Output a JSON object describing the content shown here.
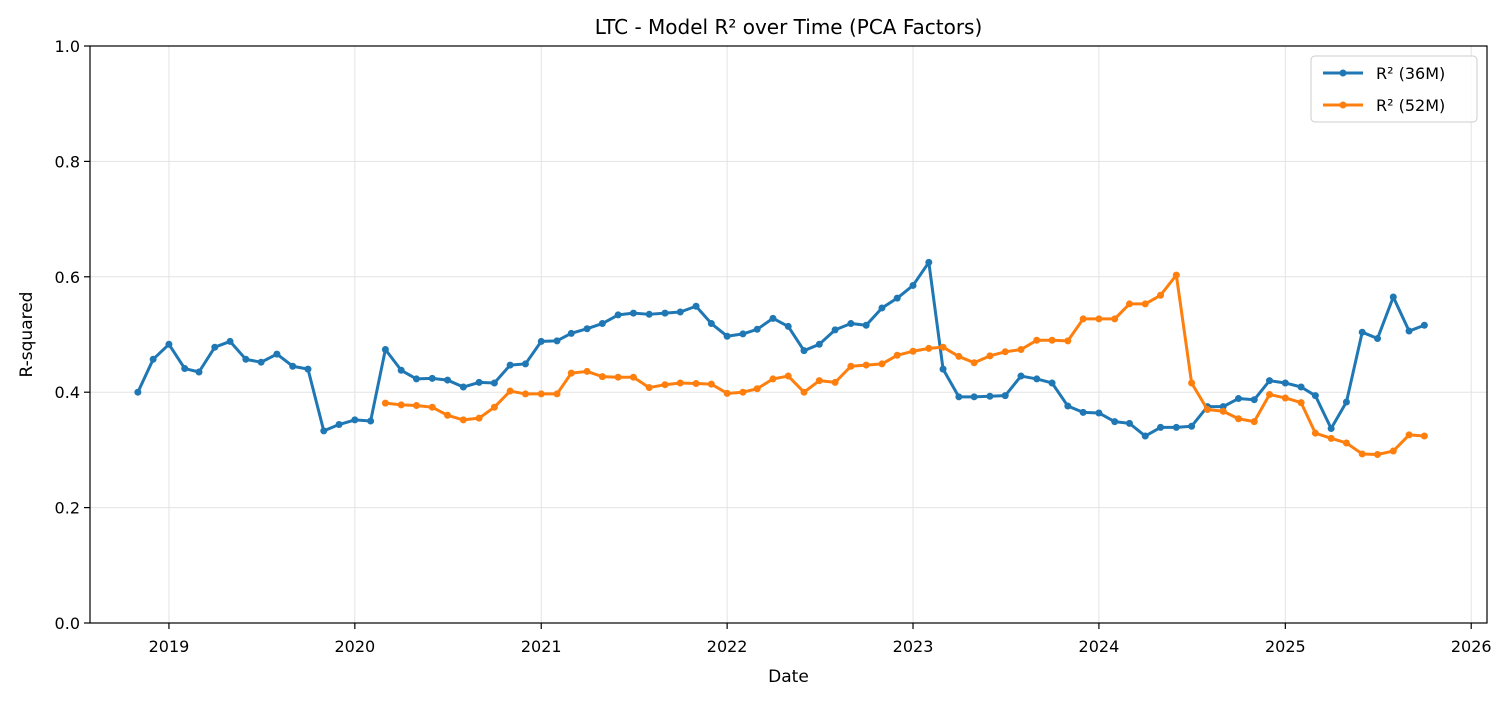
{
  "chart_data": {
    "type": "line",
    "title": "LTC - Model R² over Time (PCA Factors)",
    "xlabel": "Date",
    "ylabel": "R-squared",
    "xlim": [
      "2018-07-30",
      "2026-02-01"
    ],
    "ylim": [
      0,
      1
    ],
    "x_ticks": [
      "2019",
      "2020",
      "2021",
      "2022",
      "2023",
      "2024",
      "2025",
      "2026"
    ],
    "y_ticks": [
      "0.0",
      "0.2",
      "0.4",
      "0.6",
      "0.8",
      "1.0"
    ],
    "grid": true,
    "legend_position": "top-right",
    "colors": {
      "r2_36m": "#1f77b4",
      "r2_52m": "#ff7f0e"
    },
    "series": [
      {
        "name": "R² (36M)",
        "start": "2018-11",
        "values": [
          0.4,
          0.457,
          0.483,
          0.441,
          0.435,
          0.478,
          0.488,
          0.457,
          0.452,
          0.466,
          0.445,
          0.44,
          0.333,
          0.344,
          0.352,
          0.35,
          0.474,
          0.438,
          0.423,
          0.424,
          0.421,
          0.409,
          0.417,
          0.416,
          0.447,
          0.449,
          0.488,
          0.489,
          0.502,
          0.51,
          0.519,
          0.534,
          0.537,
          0.535,
          0.537,
          0.539,
          0.549,
          0.519,
          0.497,
          0.501,
          0.509,
          0.528,
          0.514,
          0.472,
          0.483,
          0.508,
          0.519,
          0.516,
          0.546,
          0.563,
          0.585,
          0.625,
          0.44,
          0.392,
          0.392,
          0.393,
          0.394,
          0.428,
          0.423,
          0.416,
          0.376,
          0.365,
          0.364,
          0.349,
          0.346,
          0.324,
          0.339,
          0.339,
          0.341,
          0.375,
          0.375,
          0.389,
          0.387,
          0.42,
          0.416,
          0.409,
          0.394,
          0.337,
          0.383,
          0.504,
          0.493,
          0.565,
          0.506,
          0.516
        ]
      },
      {
        "name": "R² (52M)",
        "start": "2020-03",
        "values": [
          0.381,
          0.378,
          0.377,
          0.374,
          0.36,
          0.352,
          0.355,
          0.374,
          0.402,
          0.397,
          0.397,
          0.397,
          0.433,
          0.436,
          0.427,
          0.426,
          0.426,
          0.408,
          0.413,
          0.416,
          0.415,
          0.414,
          0.398,
          0.4,
          0.406,
          0.423,
          0.428,
          0.4,
          0.42,
          0.417,
          0.445,
          0.447,
          0.449,
          0.464,
          0.471,
          0.476,
          0.478,
          0.462,
          0.451,
          0.463,
          0.47,
          0.474,
          0.49,
          0.49,
          0.489,
          0.527,
          0.527,
          0.527,
          0.553,
          0.553,
          0.568,
          0.603,
          0.416,
          0.37,
          0.367,
          0.354,
          0.349,
          0.396,
          0.39,
          0.382,
          0.329,
          0.32,
          0.312,
          0.293,
          0.292,
          0.298,
          0.326,
          0.324
        ]
      }
    ]
  }
}
